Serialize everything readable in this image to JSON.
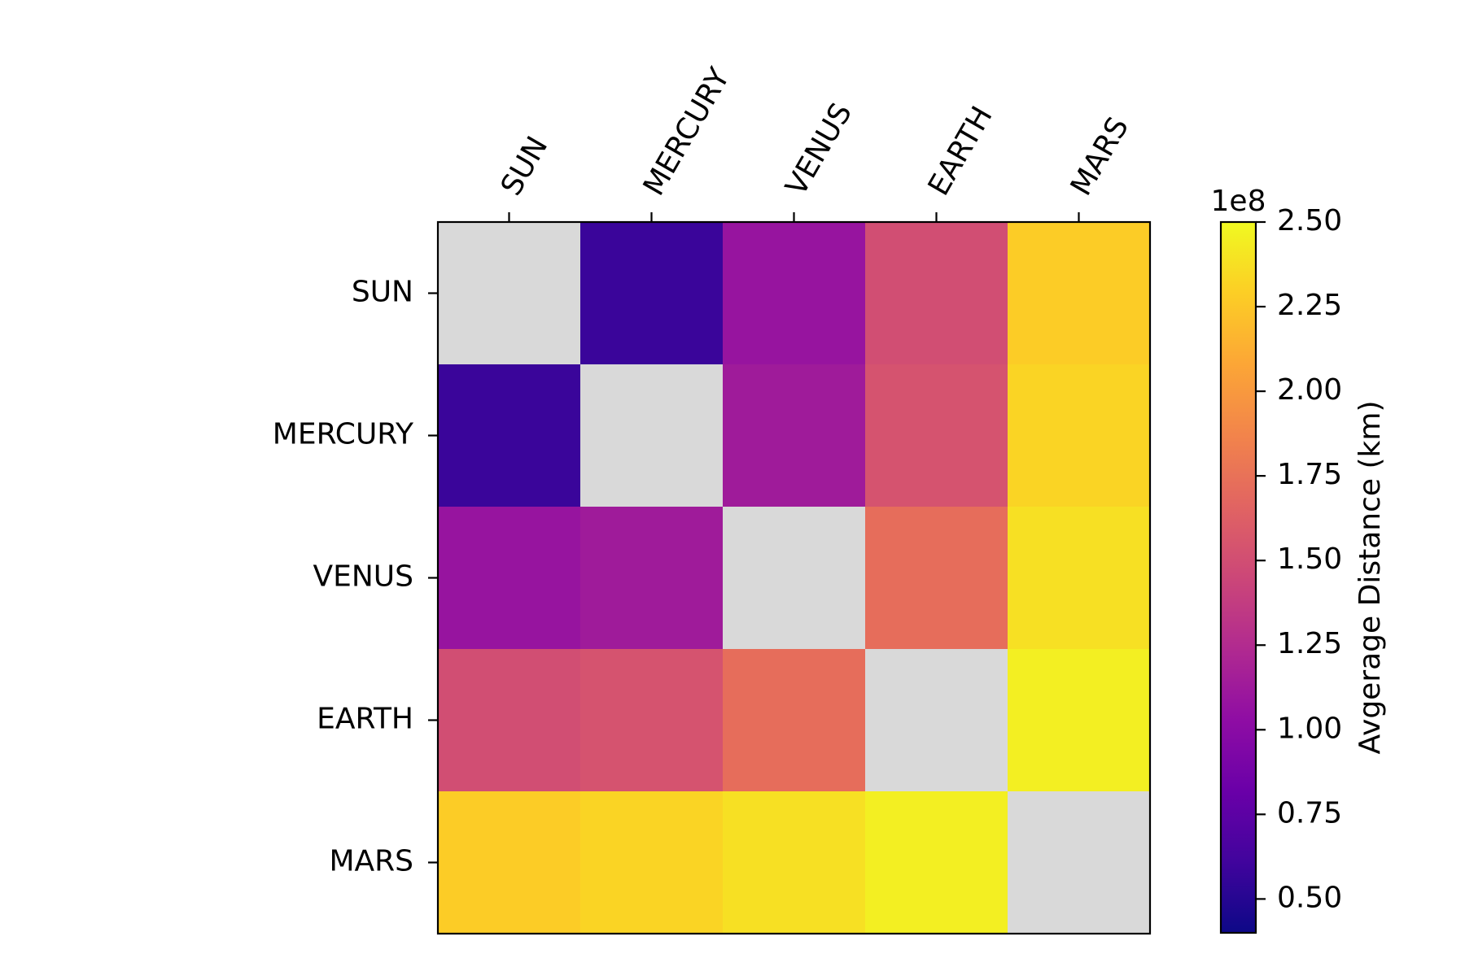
{
  "chart_data": {
    "type": "heatmap",
    "title": "",
    "rows": [
      "SUN",
      "MERCURY",
      "VENUS",
      "EARTH",
      "MARS"
    ],
    "columns": [
      "SUN",
      "MERCURY",
      "VENUS",
      "EARTH",
      "MARS"
    ],
    "values": [
      [
        null,
        58000000,
        108000000,
        150000000,
        228000000
      ],
      [
        58000000,
        null,
        113000000,
        154000000,
        232000000
      ],
      [
        108000000,
        113000000,
        null,
        172000000,
        238000000
      ],
      [
        150000000,
        154000000,
        172000000,
        null,
        245000000
      ],
      [
        228000000,
        232000000,
        238000000,
        245000000,
        null
      ]
    ],
    "missing_color": "#d9d9d9",
    "colormap": "plasma",
    "colorbar": {
      "label": "Avgerage Distance (km)",
      "offset_text": "1e8",
      "range": [
        0.4,
        2.5
      ],
      "ticks": [
        0.5,
        0.75,
        1.0,
        1.25,
        1.5,
        1.75,
        2.0,
        2.25,
        2.5
      ],
      "tick_labels": [
        "0.50",
        "0.75",
        "1.00",
        "1.25",
        "1.50",
        "1.75",
        "2.00",
        "2.25",
        "2.50"
      ],
      "scale": 100000000
    },
    "x_tick_position": "top",
    "x_tick_rotation": "rotated",
    "grid": false
  }
}
